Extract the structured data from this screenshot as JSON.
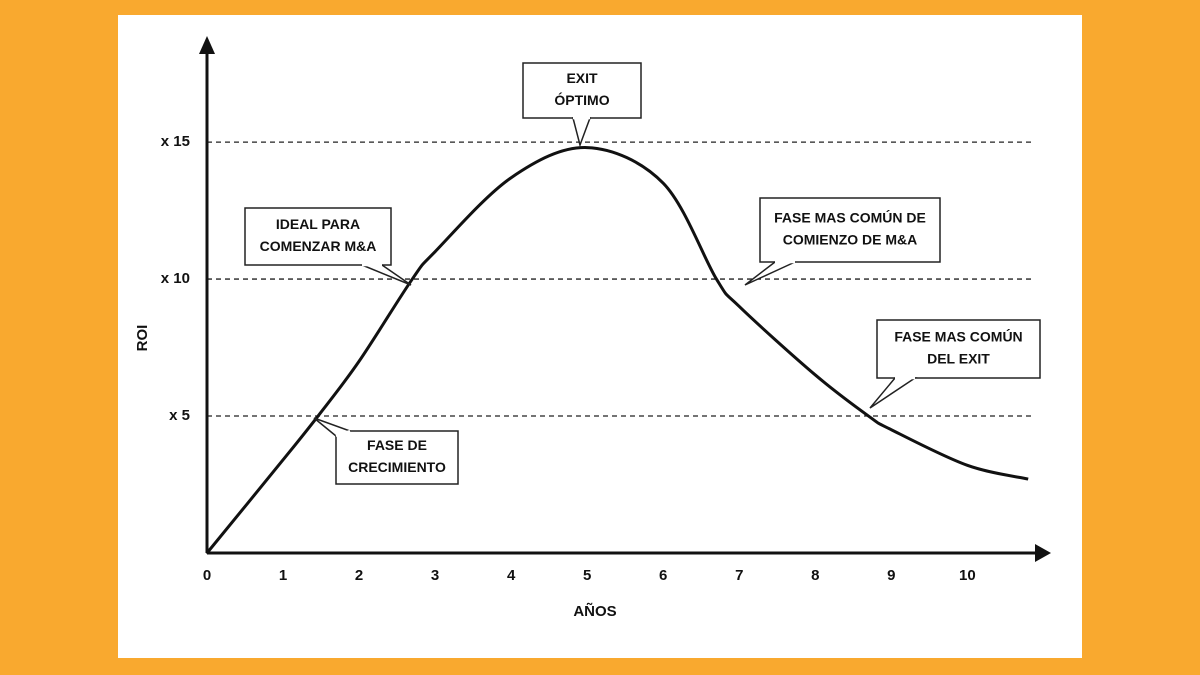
{
  "chart_data": {
    "type": "line",
    "x_label": "AÑOS",
    "y_label": "ROI",
    "x": [
      0,
      1,
      1.46,
      2,
      2.7,
      3,
      4,
      5,
      6,
      6.7,
      7,
      8,
      8.7,
      9,
      10,
      10.8
    ],
    "series": [
      {
        "color": "#111111",
        "values": [
          0,
          3.4,
          5,
          7.0,
          10,
          11,
          13.7,
          14.8,
          13.5,
          10,
          9,
          6.5,
          5,
          4.5,
          3.2,
          2.7
        ]
      }
    ],
    "xlim": [
      0,
      11.1
    ],
    "ylim": [
      0,
      18.8
    ],
    "xticks": [
      0,
      1,
      2,
      3,
      4,
      5,
      6,
      7,
      8,
      9,
      10
    ],
    "yticks": [
      {
        "value": 5,
        "label": "x 5"
      },
      {
        "value": 10,
        "label": "x 10"
      },
      {
        "value": 15,
        "label": "x 15"
      }
    ],
    "grid": true,
    "annotations": [
      {
        "lines": [
          "EXIT",
          "ÓPTIMO"
        ]
      },
      {
        "lines": [
          "IDEAL PARA",
          "COMENZAR M&A"
        ]
      },
      {
        "lines": [
          "FASE MAS COMÚN DE",
          "COMIENZO DE M&A"
        ]
      },
      {
        "lines": [
          "FASE MAS COMÚN",
          "DEL EXIT"
        ]
      },
      {
        "lines": [
          "FASE DE",
          "CRECIMIENTO"
        ]
      }
    ]
  }
}
